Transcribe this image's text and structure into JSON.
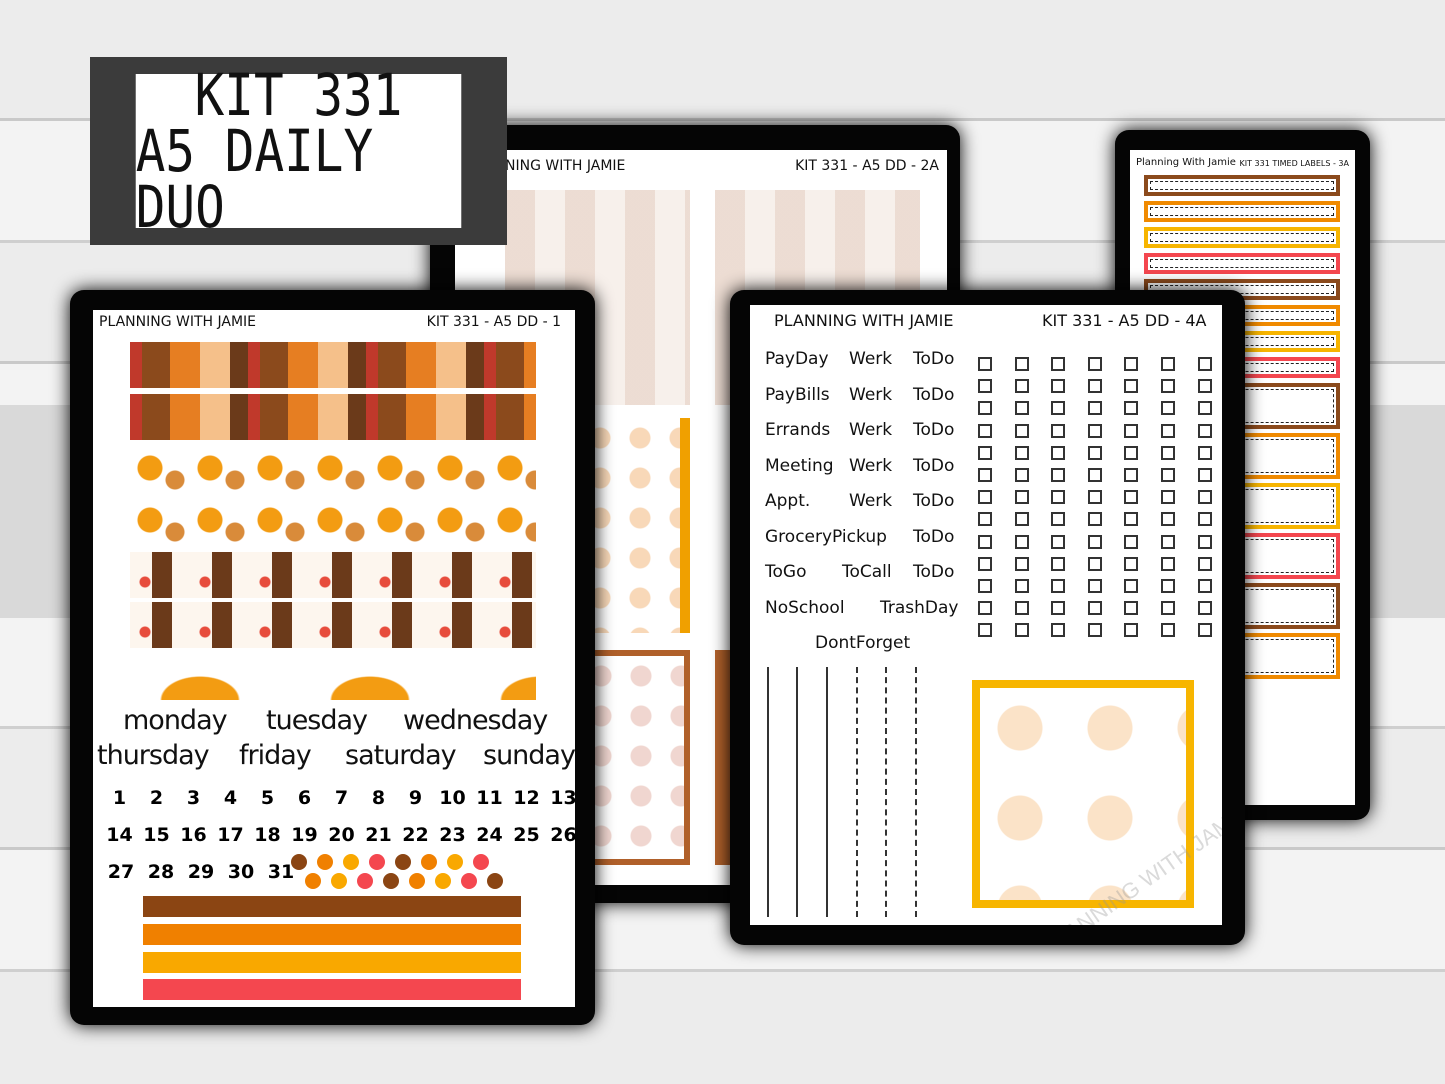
{
  "title": {
    "line1": "KIT 331",
    "line2": "A5 DAILY DUO"
  },
  "sheet_2a": {
    "brand": "NING WITH JAMIE",
    "code": "KIT 331 - A5 DD - 2A"
  },
  "sheet_3a": {
    "brand": "Planning With Jamie",
    "code": "KIT 331 TIMED LABELS - 3A",
    "label_colors": [
      "#8b4a1c",
      "#f08a00",
      "#f7b500",
      "#f4474f",
      "#8b4a1c",
      "#f08a00",
      "#f7b500",
      "#f4474f",
      "#8b4a1c",
      "#f08a00",
      "#f7b500",
      "#f4474f",
      "#8b4a1c",
      "#f08a00"
    ]
  },
  "sheet_4a": {
    "brand": "PLANNING WITH JAMIE",
    "code": "KIT 331 - A5 DD - 4A",
    "words": [
      [
        "PayDay",
        "Werk",
        "ToDo"
      ],
      [
        "PayBills",
        "Werk",
        "ToDo"
      ],
      [
        "Errands",
        "Werk",
        "ToDo"
      ],
      [
        "Meeting",
        "Werk",
        "ToDo"
      ],
      [
        "Appt.",
        "Werk",
        "ToDo"
      ],
      [
        "GroceryPickup",
        "",
        "ToDo"
      ],
      [
        "ToGo",
        "ToCall",
        "ToDo"
      ],
      [
        "NoSchool",
        "TrashDay",
        ""
      ],
      [
        "DontForget",
        "",
        ""
      ]
    ],
    "checkbox_rows": 13,
    "checkbox_cols": 7
  },
  "sheet_1": {
    "brand": "PLANNING WITH JAMIE",
    "code": "KIT 331 - A5 DD - 1",
    "days_row1": [
      "monday",
      "tuesday",
      "wednesday"
    ],
    "days_row2": [
      "thursday",
      "friday",
      "saturday",
      "sunday"
    ],
    "numbers_row1": [
      "1",
      "2",
      "3",
      "4",
      "5",
      "6",
      "7",
      "8",
      "9",
      "10",
      "11",
      "12",
      "13"
    ],
    "numbers_row2": [
      "14",
      "15",
      "16",
      "17",
      "18",
      "19",
      "20",
      "21",
      "22",
      "23",
      "24",
      "25",
      "26"
    ],
    "numbers_row3": [
      "27",
      "28",
      "29",
      "30",
      "31"
    ],
    "bar_colors": [
      "#8b4513",
      "#f08000",
      "#f9a800",
      "#f4474f"
    ],
    "dot_colors": [
      "#8b4513",
      "#f08000",
      "#f9a800",
      "#f4474f"
    ]
  },
  "watermark": "PLANNING WITH JAMIE WATERMARK"
}
